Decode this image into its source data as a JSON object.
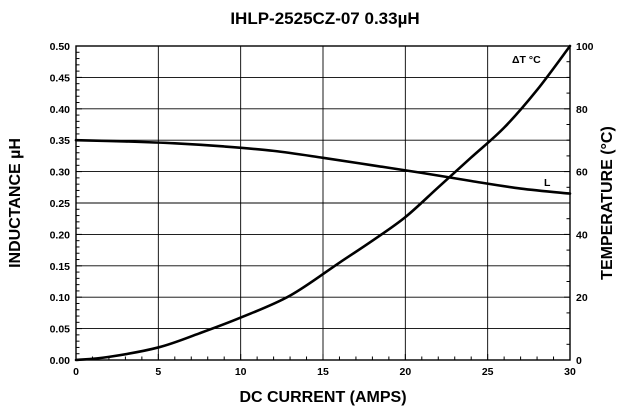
{
  "chart_data": {
    "type": "line",
    "title": "IHLP-2525CZ-07 0.33µH",
    "xlabel": "DC CURRENT (AMPS)",
    "ylabel": "INDUCTANCE µH",
    "y2label": "TEMPERATURE (°C)",
    "xlim": [
      0,
      30
    ],
    "ylim": [
      0,
      0.5
    ],
    "y2lim": [
      0,
      100
    ],
    "x_ticks": [
      "0",
      "5",
      "10",
      "15",
      "20",
      "25",
      "30"
    ],
    "y_ticks": [
      "0.00",
      "0.05",
      "0.10",
      "0.15",
      "0.20",
      "0.25",
      "0.30",
      "0.35",
      "0.40",
      "0.45",
      "0.50"
    ],
    "y2_ticks": [
      "0",
      "20",
      "40",
      "60",
      "80",
      "100"
    ],
    "grid": true,
    "series": [
      {
        "name": "L",
        "axis": "left",
        "x": [
          0,
          3,
          6,
          9,
          12,
          15,
          18,
          21,
          24,
          27,
          30
        ],
        "y": [
          0.35,
          0.348,
          0.345,
          0.34,
          0.333,
          0.322,
          0.31,
          0.298,
          0.285,
          0.273,
          0.265
        ]
      },
      {
        "name": "ΔT °C",
        "axis": "right",
        "x": [
          0,
          2,
          5,
          7.5,
          10,
          13,
          16,
          18,
          20,
          22,
          24,
          26,
          28,
          30
        ],
        "y": [
          0,
          1,
          4,
          8.5,
          13.5,
          20.5,
          31,
          38,
          45.5,
          55,
          64.5,
          74,
          86,
          100
        ]
      }
    ]
  }
}
